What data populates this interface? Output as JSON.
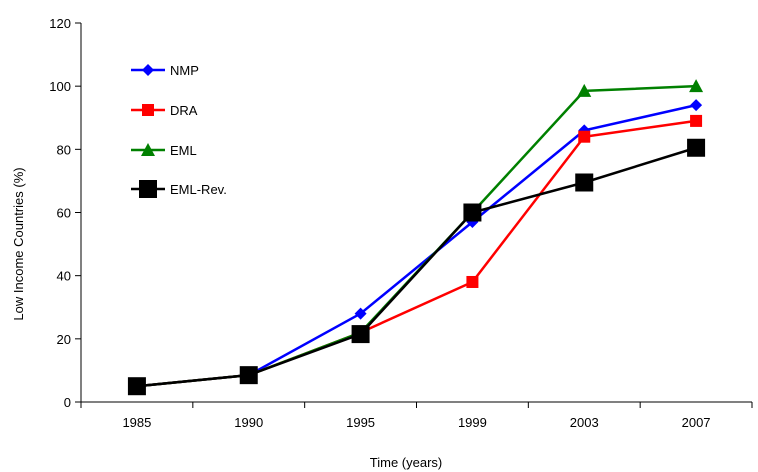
{
  "chart_data": {
    "type": "line",
    "title": "",
    "xlabel": "Time (years)",
    "ylabel": "Low Income Countries (%)",
    "categories": [
      "1985",
      "1990",
      "1995",
      "1999",
      "2003",
      "2007"
    ],
    "ylim": [
      0,
      120
    ],
    "yticks": [
      0,
      20,
      40,
      60,
      80,
      100,
      120
    ],
    "grid": false,
    "legend_position": "top-left",
    "series": [
      {
        "name": "NMP",
        "color": "#0000ff",
        "marker": "diamond",
        "values": [
          5,
          8.5,
          28,
          57,
          86,
          94
        ]
      },
      {
        "name": "DRA",
        "color": "#ff0000",
        "marker": "square",
        "values": [
          5,
          8.5,
          22,
          38,
          84,
          89
        ]
      },
      {
        "name": "EML",
        "color": "#008000",
        "marker": "triangle",
        "values": [
          5,
          8.5,
          22,
          60,
          98.5,
          100
        ]
      },
      {
        "name": "EML-Rev.",
        "color": "#000000",
        "marker": "big-square",
        "values": [
          5,
          8.5,
          21.5,
          60,
          69.5,
          80.5
        ]
      }
    ]
  }
}
